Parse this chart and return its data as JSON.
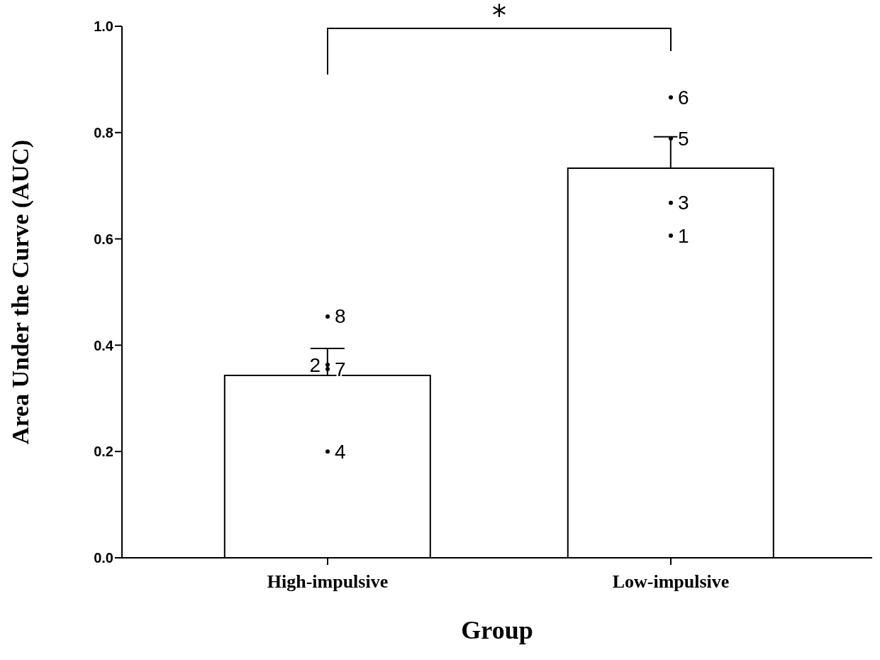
{
  "chart_data": {
    "type": "bar",
    "xlabel": "Group",
    "ylabel": "Area Under the Curve (AUC)",
    "categories": [
      "High-impulsive",
      "Low-impulsive"
    ],
    "series": [
      {
        "type": "bar",
        "values": [
          0.343,
          0.733
        ],
        "color": "#ffffff",
        "errors": [
          [
            0.343,
            0.394
          ],
          [
            0.733,
            0.792
          ]
        ]
      },
      {
        "type": "scatter",
        "x": [
          "High-impulsive",
          "High-impulsive",
          "High-impulsive",
          "High-impulsive",
          "Low-impulsive",
          "Low-impulsive",
          "Low-impulsive",
          "Low-impulsive"
        ],
        "values": [
          0.454,
          0.363,
          0.355,
          0.2,
          0.866,
          0.789,
          0.668,
          0.606
        ],
        "color": "#000000"
      }
    ],
    "ylim": [
      0,
      1
    ],
    "yticks": [
      {
        "value": 0,
        "label": "0.0"
      },
      0.2,
      0.4,
      0.6,
      0.8,
      {
        "value": 1,
        "label": "1.0"
      }
    ],
    "grid": false,
    "legend": false,
    "annotations": [
      "*",
      {
        "text": "8",
        "x": "High-impulsive",
        "y": 0.454
      },
      {
        "text": "2",
        "x": "High-impulsive",
        "y": 0.363
      },
      {
        "text": "7",
        "x": "High-impulsive",
        "y": 0.355
      },
      {
        "text": "4",
        "x": "High-impulsive",
        "y": 0.2
      },
      {
        "text": "6",
        "x": "Low-impulsive",
        "y": 0.866
      },
      {
        "text": "5",
        "x": "Low-impulsive",
        "y": 0.789
      },
      {
        "text": "3",
        "x": "Low-impulsive",
        "y": 0.668
      },
      {
        "text": "1",
        "x": "Low-impulsive",
        "y": 0.606
      }
    ]
  }
}
